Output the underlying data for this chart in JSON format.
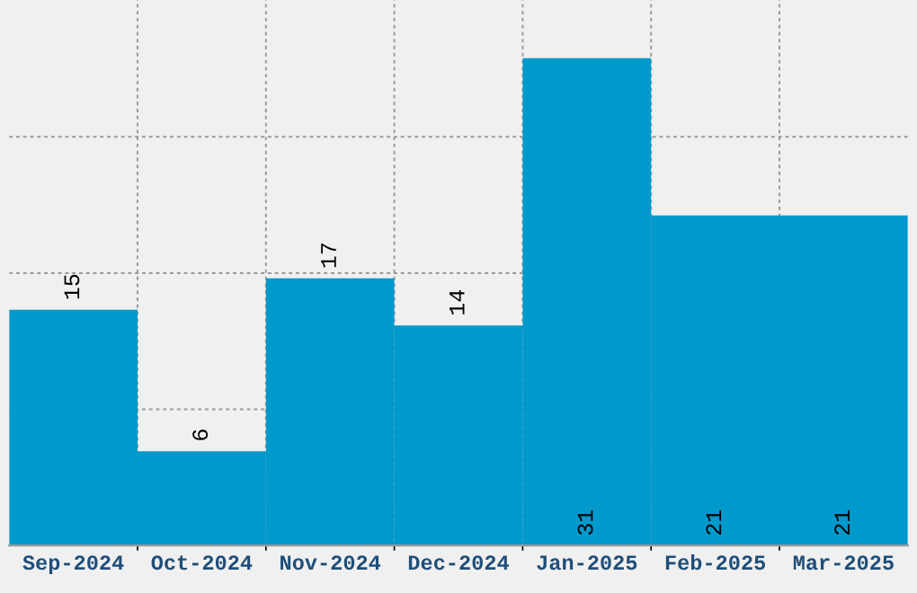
{
  "chart_data": {
    "type": "bar",
    "categories": [
      "Sep-2024",
      "Oct-2024",
      "Nov-2024",
      "Dec-2024",
      "Jan-2025",
      "Feb-2025",
      "Mar-2025"
    ],
    "values": [
      15,
      6,
      17,
      14,
      31,
      21,
      21
    ],
    "color": "#0099cc",
    "data_labels": true,
    "grid": true,
    "tick_labels": "x",
    "ylim": [
      0,
      34.7
    ],
    "yticks": [
      {
        "value": 8.67,
        "label": null
      },
      {
        "value": 17.33,
        "label": null
      },
      {
        "value": 26,
        "label": null
      }
    ]
  }
}
